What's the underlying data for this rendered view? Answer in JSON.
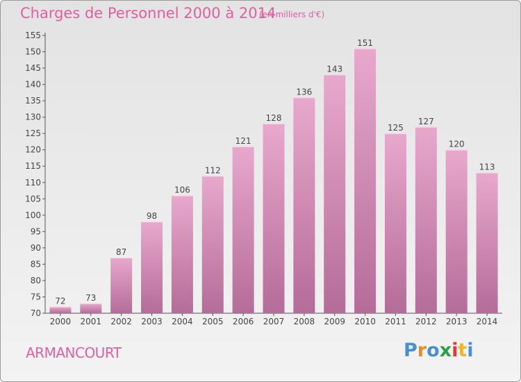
{
  "header": {
    "title": "Charges de Personnel 2000 à 2014",
    "subtitle": "(en milliers d'€)"
  },
  "footer": {
    "town": "ARMANCOURT",
    "logo": [
      "P",
      "r",
      "o",
      "x",
      "i",
      "t",
      "i"
    ]
  },
  "colors": {
    "bar_top": "#e8a8cc",
    "bar_bottom": "#b46c98",
    "accent": "#e0609e",
    "logo": [
      "#4a90d0",
      "#ef8a1e",
      "#4a90d0",
      "#2aa04a",
      "#e23a3a",
      "#e8b82a",
      "#4a90d0"
    ]
  },
  "chart_data": {
    "type": "bar",
    "categories": [
      "2000",
      "2001",
      "2002",
      "2003",
      "2004",
      "2005",
      "2006",
      "2007",
      "2008",
      "2009",
      "2010",
      "2011",
      "2012",
      "2013",
      "2014"
    ],
    "values": [
      72,
      73,
      87,
      98,
      106,
      112,
      121,
      128,
      136,
      143,
      151,
      125,
      127,
      120,
      113
    ],
    "ylim": [
      70,
      155
    ],
    "yticks": [
      70,
      75,
      80,
      85,
      90,
      95,
      100,
      105,
      110,
      115,
      120,
      125,
      130,
      135,
      140,
      145,
      150,
      155
    ],
    "grid": false,
    "legend": "none"
  }
}
